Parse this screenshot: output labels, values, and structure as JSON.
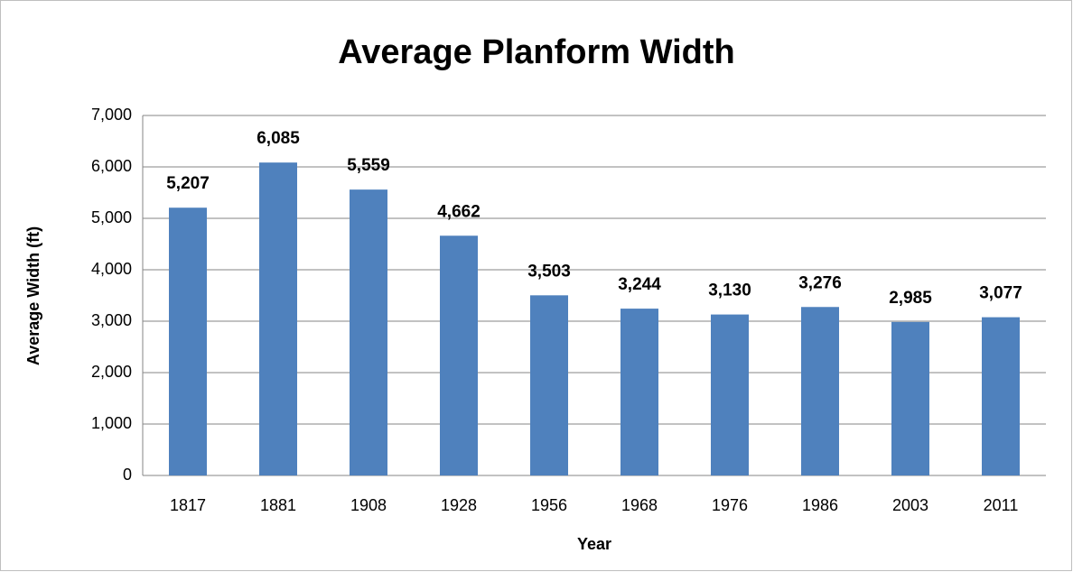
{
  "chart_data": {
    "type": "bar",
    "title": "Average Planform Width",
    "x_label": "Year",
    "y_label": "Average Width (ft)",
    "categories": [
      "1817",
      "1881",
      "1908",
      "1928",
      "1956",
      "1968",
      "1976",
      "1986",
      "2003",
      "2011"
    ],
    "values": [
      5207,
      6085,
      5559,
      4662,
      3503,
      3244,
      3130,
      3276,
      2985,
      3077
    ],
    "value_labels": [
      "5,207",
      "6,085",
      "5,559",
      "4,662",
      "3,503",
      "3,244",
      "3,130",
      "3,276",
      "2,985",
      "3,077"
    ],
    "color": "#4f81bd",
    "ylim": [
      0,
      7000
    ],
    "yticks": [
      0,
      {
        "value": 1000,
        "label": "1,000"
      },
      {
        "value": 2000,
        "label": "2,000"
      },
      {
        "value": 3000,
        "label": "3,000"
      },
      {
        "value": 4000,
        "label": "4,000"
      },
      {
        "value": 5000,
        "label": "5,000"
      },
      {
        "value": 6000,
        "label": "6,000"
      },
      {
        "value": 7000,
        "label": "7,000"
      }
    ],
    "grid": true
  }
}
